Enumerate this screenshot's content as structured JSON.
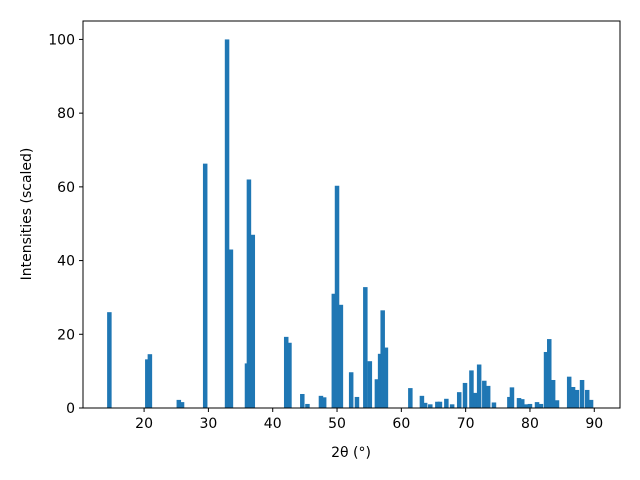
{
  "chart_data": {
    "type": "bar",
    "x_label": "2θ (°)",
    "y_label": "Intensities (scaled)",
    "color": "#1f77b4",
    "x": [
      14.6,
      20.5,
      20.9,
      25.4,
      25.9,
      29.5,
      32.9,
      33.5,
      36.0,
      36.3,
      36.9,
      42.1,
      42.6,
      44.6,
      45.4,
      47.5,
      48.0,
      49.5,
      50.0,
      50.6,
      52.2,
      53.1,
      54.4,
      55.1,
      56.2,
      56.7,
      57.1,
      57.6,
      61.4,
      63.2,
      63.7,
      64.5,
      65.6,
      66.0,
      67.0,
      67.9,
      69.0,
      69.9,
      70.9,
      71.5,
      72.1,
      72.9,
      73.5,
      74.4,
      76.8,
      77.2,
      78.3,
      78.8,
      79.4,
      80.0,
      81.1,
      81.7,
      82.5,
      83.0,
      83.6,
      84.2,
      86.1,
      86.7,
      87.3,
      88.1,
      88.9,
      89.5
    ],
    "values": [
      26,
      13.2,
      14.6,
      2.2,
      1.6,
      66.3,
      100,
      43,
      12.1,
      62,
      47,
      19.3,
      17.7,
      3.8,
      1.1,
      3.3,
      2.9,
      31,
      60.3,
      28,
      9.7,
      3.0,
      32.8,
      12.7,
      7.8,
      14.7,
      26.5,
      16.4,
      5.4,
      3.3,
      1.4,
      1.0,
      1.7,
      1.7,
      2.5,
      1.0,
      4.3,
      6.8,
      10.2,
      4.1,
      11.8,
      7.4,
      6.0,
      1.5,
      3.0,
      5.6,
      2.7,
      2.4,
      1.0,
      1.1,
      1.6,
      1.1,
      15.2,
      18.7,
      7.6,
      2.1,
      8.5,
      5.7,
      4.9,
      7.6,
      4.9,
      2.2
    ],
    "xlim": [
      10.5,
      94.0
    ],
    "ylim": [
      0,
      105
    ],
    "xticks": [
      20,
      30,
      40,
      50,
      60,
      70,
      80,
      90
    ],
    "yticks": [
      0,
      20,
      40,
      60,
      80,
      100
    ]
  }
}
